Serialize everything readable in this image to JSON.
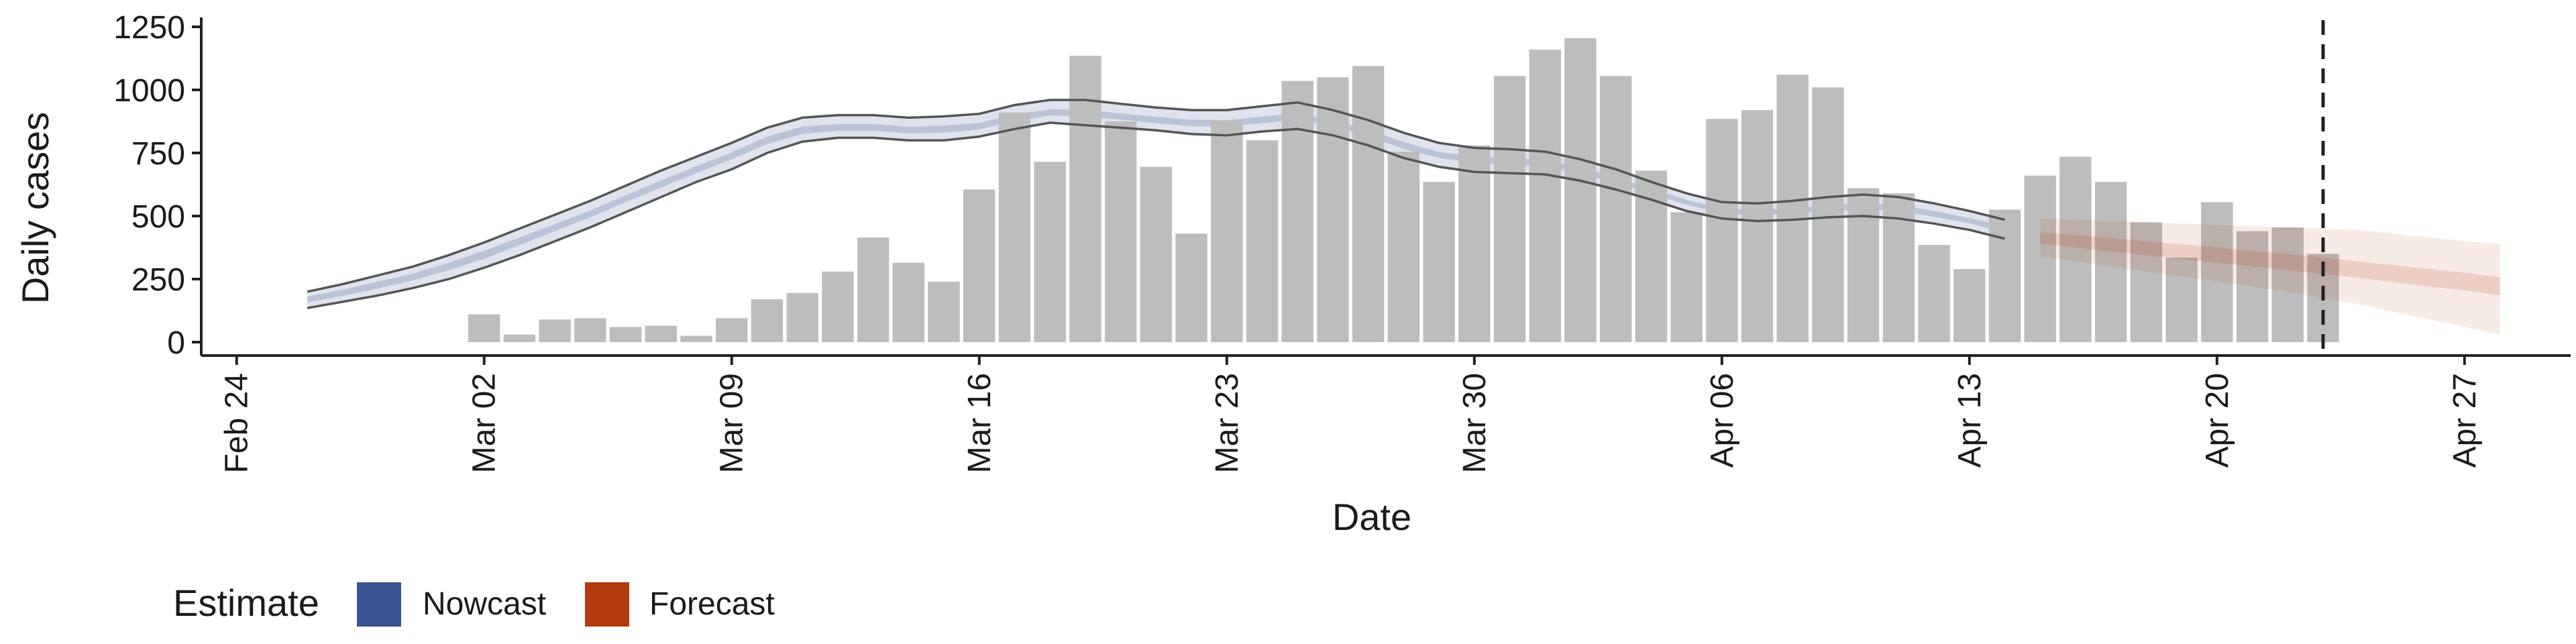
{
  "chart_data": {
    "type": "bar",
    "title": "",
    "xlabel": "Date",
    "ylabel": "Daily cases",
    "ylim": [
      0,
      1250
    ],
    "yticks": [
      0,
      250,
      500,
      750,
      1000,
      1250
    ],
    "ytick_labels": [
      "0",
      "250",
      "500",
      "750",
      "1000",
      "1250"
    ],
    "xlim": [
      "2020-02-23",
      "2020-04-30"
    ],
    "xticks": [
      "2020-02-24",
      "2020-03-02",
      "2020-03-09",
      "2020-03-16",
      "2020-03-23",
      "2020-03-30",
      "2020-04-06",
      "2020-04-13",
      "2020-04-20",
      "2020-04-27"
    ],
    "xtick_labels": [
      "Feb 24",
      "Mar 02",
      "Mar 09",
      "Mar 16",
      "Mar 23",
      "Mar 30",
      "Apr 06",
      "Apr 13",
      "Apr 20",
      "Apr 27"
    ],
    "reference_line_date": "2020-04-23",
    "grid": false,
    "bar_color": "#bdbdbd",
    "bars": {
      "dates": [
        "2020-03-02",
        "2020-03-03",
        "2020-03-04",
        "2020-03-05",
        "2020-03-06",
        "2020-03-07",
        "2020-03-08",
        "2020-03-09",
        "2020-03-10",
        "2020-03-11",
        "2020-03-12",
        "2020-03-13",
        "2020-03-14",
        "2020-03-15",
        "2020-03-16",
        "2020-03-17",
        "2020-03-18",
        "2020-03-19",
        "2020-03-20",
        "2020-03-21",
        "2020-03-22",
        "2020-03-23",
        "2020-03-24",
        "2020-03-25",
        "2020-03-26",
        "2020-03-27",
        "2020-03-28",
        "2020-03-29",
        "2020-03-30",
        "2020-03-31",
        "2020-04-01",
        "2020-04-02",
        "2020-04-03",
        "2020-04-04",
        "2020-04-05",
        "2020-04-06",
        "2020-04-07",
        "2020-04-08",
        "2020-04-09",
        "2020-04-10",
        "2020-04-11",
        "2020-04-12",
        "2020-04-13",
        "2020-04-14",
        "2020-04-15",
        "2020-04-16",
        "2020-04-17",
        "2020-04-18",
        "2020-04-19",
        "2020-04-20",
        "2020-04-21",
        "2020-04-22",
        "2020-04-23"
      ],
      "values": [
        110,
        30,
        90,
        95,
        60,
        65,
        25,
        95,
        170,
        195,
        280,
        415,
        315,
        240,
        605,
        910,
        715,
        1135,
        875,
        695,
        430,
        880,
        800,
        1035,
        1050,
        1095,
        755,
        635,
        780,
        1055,
        1160,
        1205,
        1055,
        680,
        515,
        885,
        920,
        1060,
        1010,
        610,
        590,
        385,
        290,
        525,
        660,
        735,
        635,
        475,
        335,
        555,
        440,
        455,
        350
      ]
    },
    "nowcast": {
      "color": "#3a5290",
      "dates": [
        "2020-02-26",
        "2020-02-27",
        "2020-02-28",
        "2020-02-29",
        "2020-03-01",
        "2020-03-02",
        "2020-03-03",
        "2020-03-04",
        "2020-03-05",
        "2020-03-06",
        "2020-03-07",
        "2020-03-08",
        "2020-03-09",
        "2020-03-10",
        "2020-03-11",
        "2020-03-12",
        "2020-03-13",
        "2020-03-14",
        "2020-03-15",
        "2020-03-16",
        "2020-03-17",
        "2020-03-18",
        "2020-03-19",
        "2020-03-20",
        "2020-03-21",
        "2020-03-22",
        "2020-03-23",
        "2020-03-24",
        "2020-03-25",
        "2020-03-26",
        "2020-03-27",
        "2020-03-28",
        "2020-03-29",
        "2020-03-30",
        "2020-03-31",
        "2020-04-01",
        "2020-04-02",
        "2020-04-03",
        "2020-04-04",
        "2020-04-05",
        "2020-04-06",
        "2020-04-07",
        "2020-04-08",
        "2020-04-09",
        "2020-04-10",
        "2020-04-11",
        "2020-04-12",
        "2020-04-13",
        "2020-04-14"
      ],
      "upper": [
        200,
        230,
        265,
        300,
        345,
        395,
        450,
        505,
        560,
        620,
        680,
        735,
        790,
        850,
        890,
        900,
        900,
        890,
        895,
        905,
        940,
        960,
        960,
        945,
        930,
        920,
        920,
        935,
        950,
        920,
        880,
        830,
        790,
        770,
        765,
        755,
        725,
        685,
        635,
        590,
        555,
        550,
        560,
        575,
        585,
        575,
        550,
        520,
        485
      ],
      "lower": [
        135,
        160,
        185,
        215,
        250,
        295,
        345,
        400,
        455,
        515,
        575,
        635,
        685,
        750,
        795,
        810,
        810,
        800,
        800,
        815,
        845,
        870,
        860,
        850,
        840,
        825,
        820,
        835,
        845,
        820,
        780,
        730,
        695,
        675,
        670,
        665,
        640,
        605,
        565,
        520,
        490,
        480,
        485,
        495,
        500,
        490,
        470,
        445,
        410
      ],
      "inner_upper": [
        180,
        208,
        240,
        272,
        315,
        362,
        415,
        468,
        522,
        582,
        641,
        697,
        752,
        815,
        855,
        864,
        864,
        854,
        858,
        869,
        903,
        923,
        921,
        907,
        893,
        882,
        880,
        894,
        908,
        880,
        842,
        793,
        754,
        736,
        731,
        722,
        693,
        654,
        608,
        564,
        530,
        523,
        531,
        544,
        553,
        543,
        520,
        492,
        458
      ],
      "inner_lower": [
        157,
        183,
        213,
        245,
        285,
        330,
        385,
        440,
        495,
        555,
        613,
        670,
        725,
        785,
        825,
        838,
        838,
        828,
        830,
        843,
        876,
        899,
        895,
        882,
        868,
        856,
        854,
        868,
        881,
        856,
        816,
        766,
        730,
        710,
        705,
        697,
        668,
        632,
        589,
        545,
        513,
        504,
        508,
        520,
        528,
        518,
        497,
        471,
        437
      ]
    },
    "forecast": {
      "color": "#b33a0e",
      "dates": [
        "2020-04-15",
        "2020-04-16",
        "2020-04-17",
        "2020-04-18",
        "2020-04-19",
        "2020-04-20",
        "2020-04-21",
        "2020-04-22",
        "2020-04-23",
        "2020-04-24",
        "2020-04-25",
        "2020-04-26",
        "2020-04-27",
        "2020-04-28"
      ],
      "upper": [
        490,
        485,
        480,
        475,
        470,
        465,
        460,
        455,
        450,
        445,
        430,
        415,
        400,
        390
      ],
      "lower": [
        340,
        320,
        300,
        280,
        260,
        240,
        220,
        200,
        175,
        150,
        120,
        90,
        60,
        30
      ],
      "inner_upper": [
        435,
        425,
        412,
        400,
        388,
        375,
        362,
        350,
        335,
        320,
        305,
        290,
        275,
        258
      ],
      "inner_lower": [
        392,
        375,
        360,
        345,
        330,
        315,
        300,
        285,
        270,
        255,
        238,
        220,
        205,
        185
      ]
    },
    "legend": {
      "title": "Estimate",
      "position": "bottom-left",
      "items": [
        {
          "label": "Nowcast",
          "color": "#3a5290"
        },
        {
          "label": "Forecast",
          "color": "#b33a0e"
        }
      ]
    }
  }
}
